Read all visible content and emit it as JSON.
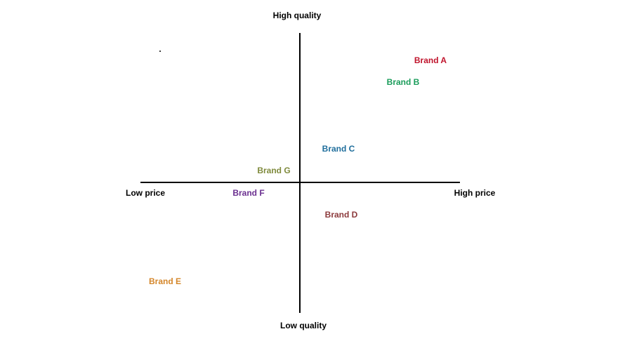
{
  "axes": {
    "top": "High quality",
    "bottom": "Low quality",
    "left": "Low price",
    "right": "High price"
  },
  "nodes": [
    {
      "label": "Brand A",
      "color": "#c0142c"
    },
    {
      "label": "Brand B",
      "color": "#1a9c5a"
    },
    {
      "label": "Brand C",
      "color": "#1f6e9c"
    },
    {
      "label": "Brand G",
      "color": "#7f8a3c"
    },
    {
      "label": "Brand F",
      "color": "#6b3090"
    },
    {
      "label": "Brand D",
      "color": "#8c3a3c"
    },
    {
      "label": "Brand E",
      "color": "#d4862a"
    }
  ]
}
